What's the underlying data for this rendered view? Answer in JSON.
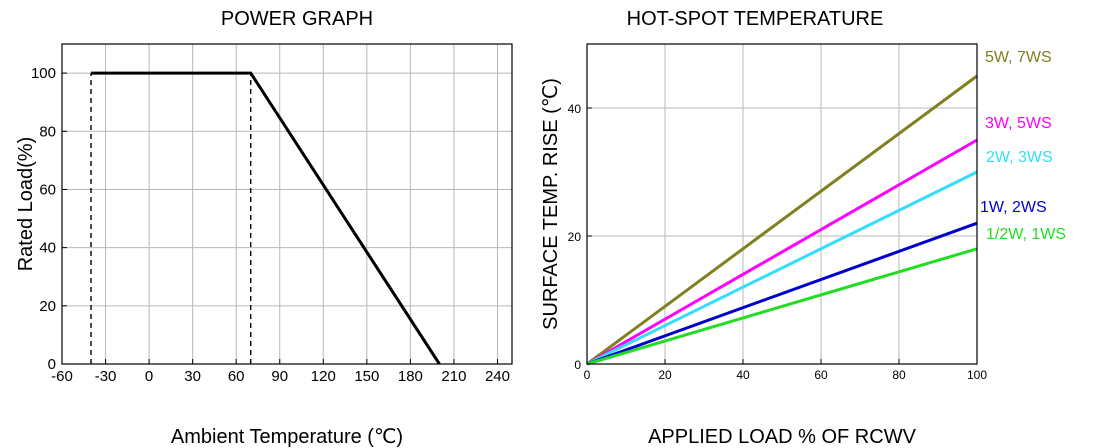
{
  "chart_data": [
    {
      "type": "line",
      "title": "POWER GRAPH",
      "xlabel": "Ambient Temperature (℃)",
      "ylabel": "Rated Load(%)",
      "xlim": [
        -60,
        250
      ],
      "ylim": [
        0,
        110
      ],
      "xticks": [
        -60,
        -30,
        0,
        30,
        60,
        90,
        120,
        150,
        180,
        210,
        240
      ],
      "yticks": [
        0,
        20,
        40,
        60,
        80,
        100
      ],
      "grid": true,
      "series": [
        {
          "x": [
            -40,
            70,
            200
          ],
          "y": [
            100,
            100,
            0
          ],
          "color": "#000000"
        }
      ],
      "reference_lines": [
        {
          "x": [
            -40,
            -40
          ],
          "y": [
            0,
            100
          ],
          "style": "dashed"
        },
        {
          "x": [
            70,
            70
          ],
          "y": [
            0,
            100
          ],
          "style": "dashed"
        }
      ]
    },
    {
      "type": "line",
      "title": "HOT-SPOT TEMPERATURE",
      "xlabel": "APPLIED LOAD % OF RCWV",
      "ylabel": "SURFACE TEMP. RISE (℃)",
      "xlim": [
        0,
        100
      ],
      "ylim": [
        0,
        50
      ],
      "xticks": [
        0,
        20,
        40,
        60,
        80,
        100
      ],
      "yticks": [
        0,
        20,
        40
      ],
      "grid": true,
      "legend": "right",
      "series": [
        {
          "name": "5W, 7WS",
          "x": [
            0,
            100
          ],
          "y": [
            0,
            45
          ],
          "color": "#808020"
        },
        {
          "name": "3W, 5WS",
          "x": [
            0,
            100
          ],
          "y": [
            0,
            35
          ],
          "color": "#ff00ff"
        },
        {
          "name": "2W, 3WS",
          "x": [
            0,
            100
          ],
          "y": [
            0,
            30
          ],
          "color": "#33ddff"
        },
        {
          "name": "1W, 2WS",
          "x": [
            0,
            100
          ],
          "y": [
            0,
            22
          ],
          "color": "#0000cc"
        },
        {
          "name": "1/2W, 1WS",
          "x": [
            0,
            100
          ],
          "y": [
            0,
            18
          ],
          "color": "#22dd22"
        }
      ]
    }
  ]
}
